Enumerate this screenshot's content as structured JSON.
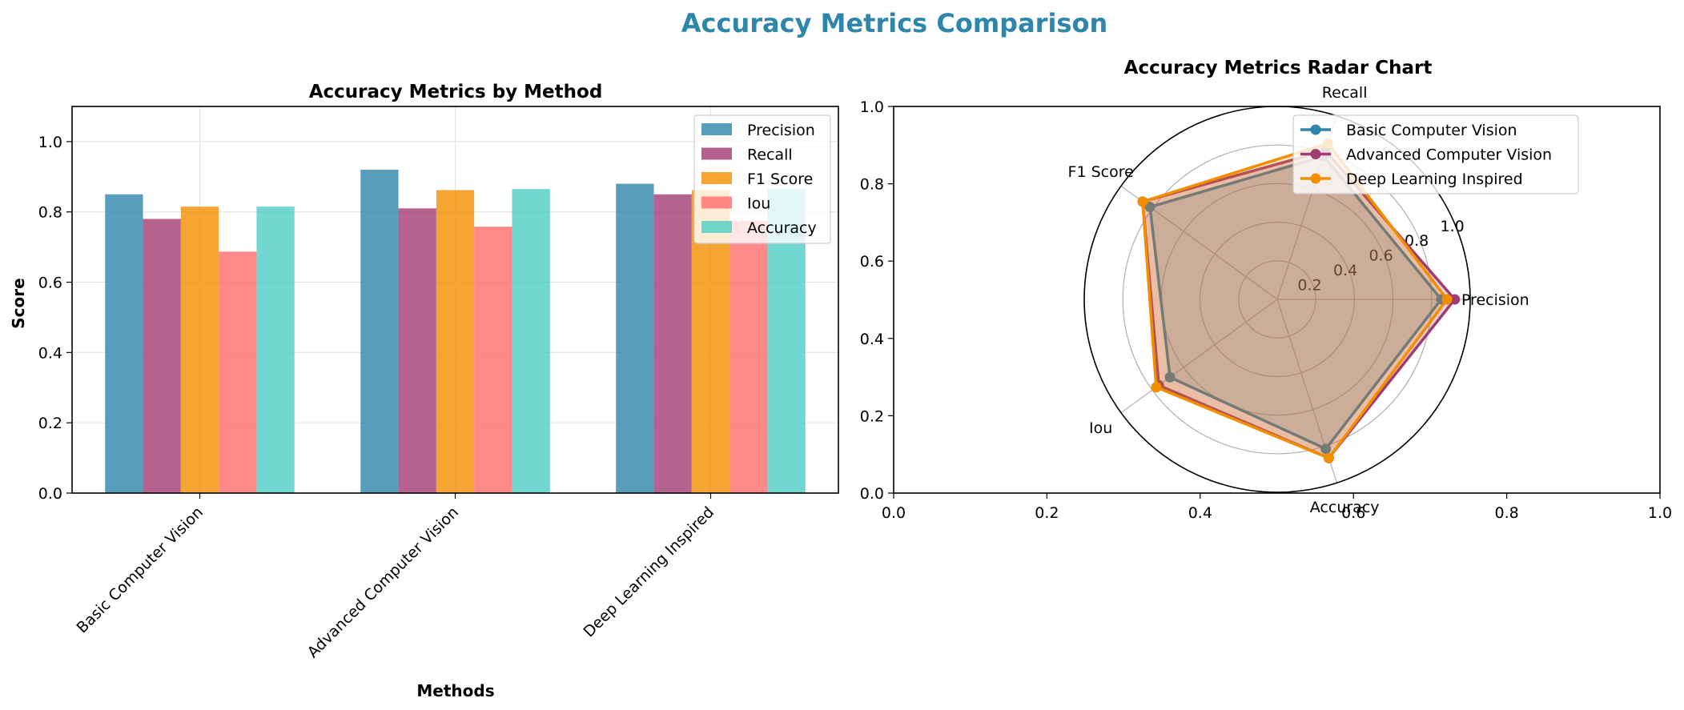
{
  "figure": {
    "title": "Accuracy Metrics Comparison"
  },
  "colors": {
    "title": "#2E86AB",
    "precision": "#2E86AB",
    "recall": "#A23B72",
    "f1": "#F18F01",
    "iou": "#FF6B6B",
    "accuracy": "#4ECDC4",
    "radar_basic": "#2E86AB",
    "radar_advanced": "#A23B72",
    "radar_deep": "#F18F01"
  },
  "chart_data": [
    {
      "type": "bar",
      "title": "Accuracy Metrics by Method",
      "xlabel": "Methods",
      "ylabel": "Score",
      "ylim": [
        0,
        1.1
      ],
      "yticks": [
        "0.0",
        "0.2",
        "0.4",
        "0.6",
        "0.8",
        "1.0"
      ],
      "grid": true,
      "legend_position": "top-right",
      "categories": [
        "Basic Computer Vision",
        "Advanced Computer Vision",
        "Deep Learning Inspired"
      ],
      "series": [
        {
          "name": "Precision",
          "values": [
            0.85,
            0.92,
            0.88
          ]
        },
        {
          "name": "Recall",
          "values": [
            0.78,
            0.81,
            0.85
          ]
        },
        {
          "name": "F1 Score",
          "values": [
            0.815,
            0.862,
            0.862
          ]
        },
        {
          "name": "Iou",
          "values": [
            0.687,
            0.758,
            0.775
          ]
        },
        {
          "name": "Accuracy",
          "values": [
            0.815,
            0.865,
            0.865
          ]
        }
      ]
    },
    {
      "type": "radar",
      "title": "Accuracy Metrics Radar Chart",
      "axes": [
        "Precision",
        "Recall",
        "F1 Score",
        "Iou",
        "Accuracy"
      ],
      "rlim": [
        0,
        1.0
      ],
      "rticks": [
        "0.2",
        "0.4",
        "0.6",
        "0.8",
        "1.0"
      ],
      "background_xticks": [
        "0.0",
        "0.2",
        "0.4",
        "0.6",
        "0.8",
        "1.0"
      ],
      "background_yticks": [
        "0.0",
        "0.2",
        "0.4",
        "0.6",
        "0.8",
        "1.0"
      ],
      "legend_position": "top-right",
      "series": [
        {
          "name": "Basic Computer Vision",
          "values": [
            0.85,
            0.78,
            0.815,
            0.687,
            0.815
          ]
        },
        {
          "name": "Advanced Computer Vision",
          "values": [
            0.92,
            0.81,
            0.862,
            0.758,
            0.865
          ]
        },
        {
          "name": "Deep Learning Inspired",
          "values": [
            0.88,
            0.85,
            0.862,
            0.775,
            0.865
          ]
        }
      ]
    }
  ]
}
